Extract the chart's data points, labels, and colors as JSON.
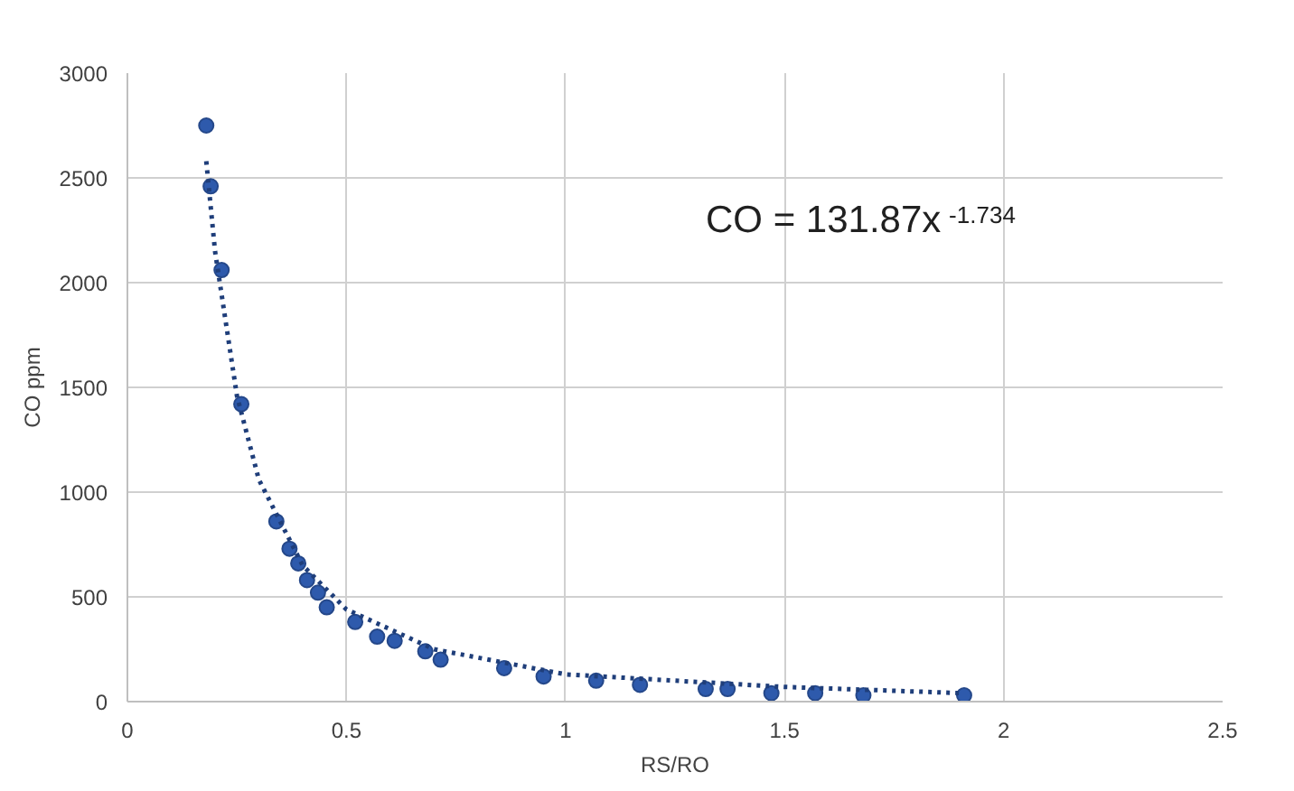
{
  "chart_data": {
    "type": "scatter",
    "xlabel": "RS/RO",
    "ylabel": "CO ppm",
    "xlim": [
      0,
      2.5
    ],
    "ylim": [
      0,
      3000
    ],
    "xticks": [
      0,
      0.5,
      1,
      1.5,
      2,
      2.5
    ],
    "yticks": [
      0,
      500,
      1000,
      1500,
      2000,
      2500,
      3000
    ],
    "grid": true,
    "marker": "circle",
    "series": [
      {
        "color": "#2e5aac",
        "x": [
          0.18,
          0.19,
          0.215,
          0.26,
          0.34,
          0.37,
          0.39,
          0.41,
          0.435,
          0.455,
          0.52,
          0.57,
          0.61,
          0.68,
          0.715,
          0.86,
          0.95,
          1.07,
          1.17,
          1.32,
          1.37,
          1.47,
          1.57,
          1.68,
          1.91
        ],
        "values": [
          2750,
          2460,
          2060,
          1420,
          860,
          730,
          660,
          580,
          520,
          450,
          380,
          310,
          290,
          240,
          200,
          160,
          120,
          100,
          80,
          60,
          60,
          40,
          40,
          30,
          30
        ]
      },
      {
        "type": "line",
        "color": "#1f3e7a",
        "line_style": "dotted",
        "marker": "none",
        "x": [
          0.18,
          0.2,
          0.25,
          0.3,
          0.4,
          0.5,
          0.7,
          1,
          1.5,
          1.91
        ],
        "values": [
          2580,
          2150,
          1460,
          1060,
          650,
          440,
          250,
          130,
          70,
          40
        ]
      }
    ],
    "annotations": [
      "CO = 131.87x$^{-1.734}$"
    ]
  }
}
